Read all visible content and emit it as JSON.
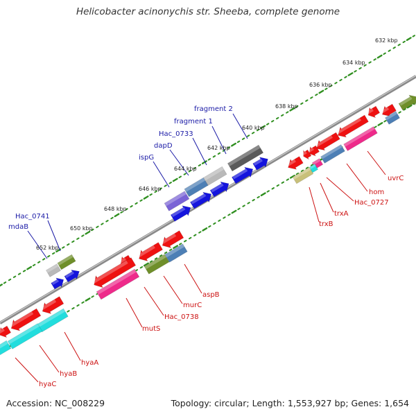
{
  "title": "Helicobacter acinonychis str. Sheeba, complete genome",
  "accession": "Accession: NC_008229",
  "summary": "Topology: circular; Length: 1,553,927 bp; Genes: 1,654",
  "colors": {
    "backbone": "#8a8a8a",
    "ruler_dots": "#2f8f1f",
    "forward_label": "#1a1aa6",
    "reverse_label": "#cc1111",
    "red": "#ee1111",
    "blue": "#1414dd",
    "magenta": "#ee2a8a",
    "cyan": "#22dddd",
    "olive": "#6f8f2a",
    "steel": "#4d7fb5",
    "lavender": "#7a63d6",
    "grey": "#b9b9b9",
    "dark_grey": "#5a5a5a",
    "khaki": "#c8c07a"
  },
  "ruler_ticks": [
    "632 kbp",
    "634 kbp",
    "636 kbp",
    "638 kbp",
    "640 kbp",
    "642 kbp",
    "644 kbp",
    "646 kbp",
    "648 kbp",
    "650 kbp",
    "652 kbp"
  ],
  "forward_labels": [
    "fragment 2",
    "fragment 1",
    "Hac_0733",
    "dapD",
    "ispG",
    "Hac_0741",
    "mdaB"
  ],
  "reverse_labels": [
    "uvrC",
    "hom",
    "Hac_0727",
    "trxA",
    "trxB",
    "aspB",
    "murC",
    "Hac_0738",
    "mutS",
    "hyaA",
    "hyaB",
    "hyaC"
  ]
}
